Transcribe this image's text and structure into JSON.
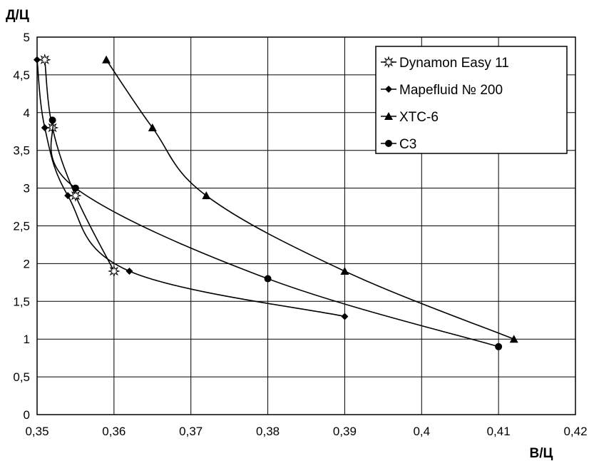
{
  "chart_data": {
    "type": "scatter",
    "xlabel": "В/Ц",
    "ylabel": "Д/Ц",
    "xlim": [
      0.35,
      0.42
    ],
    "ylim": [
      0,
      5
    ],
    "x_ticks": [
      "0,35",
      "0,36",
      "0,37",
      "0,38",
      "0,39",
      "0,4",
      "0,41",
      "0,42"
    ],
    "y_ticks": [
      "0",
      "0,5",
      "1",
      "1,5",
      "2",
      "2,5",
      "3",
      "3,5",
      "4",
      "4,5",
      "5"
    ],
    "grid": true,
    "legend_position": "top-right",
    "line_style": "smoothed lines with markers",
    "series": [
      {
        "name": "Dynamon Easy 11",
        "marker": "open-star",
        "x": [
          0.351,
          0.352,
          0.355,
          0.36
        ],
        "y": [
          4.7,
          3.8,
          2.9,
          1.9
        ]
      },
      {
        "name": "Mapefluid № 200",
        "marker": "diamond",
        "x": [
          0.35,
          0.351,
          0.354,
          0.362,
          0.39
        ],
        "y": [
          4.7,
          3.8,
          2.9,
          1.9,
          1.3
        ]
      },
      {
        "name": "ХТС-6",
        "marker": "triangle",
        "x": [
          0.359,
          0.365,
          0.372,
          0.39,
          0.412
        ],
        "y": [
          4.7,
          3.8,
          2.9,
          1.9,
          1.0
        ]
      },
      {
        "name": "С3",
        "marker": "circle",
        "x": [
          0.352,
          0.355,
          0.38,
          0.41
        ],
        "y": [
          3.9,
          3.0,
          1.8,
          0.9
        ]
      }
    ]
  }
}
